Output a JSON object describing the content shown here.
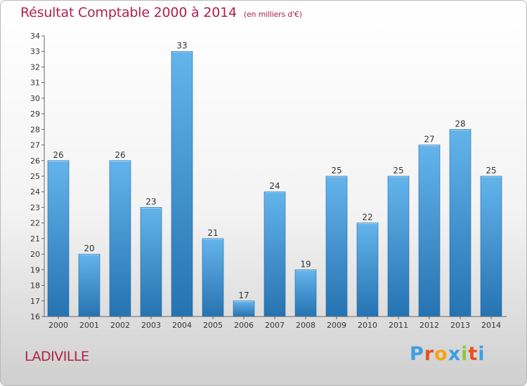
{
  "header": {
    "title": "Résultat Comptable 2000 à 2014",
    "unit": "(en milliers d'€)"
  },
  "footer": {
    "place": "LADIVILLE",
    "brand": "Proxiti"
  },
  "colors": {
    "title": "#b0204a",
    "bar_light": "#64b4ec",
    "bar_dark": "#2573b1",
    "logo": [
      "#3c9ee0",
      "#e8501f",
      "#f2a516",
      "#3c9ee0",
      "#8cc63e",
      "#e8501f",
      "#3c9ee0"
    ]
  },
  "chart_data": {
    "type": "bar",
    "title": "Résultat Comptable 2000 à 2014",
    "subtitle": "(en milliers d'€)",
    "xlabel": "",
    "ylabel": "",
    "ylim": [
      16,
      34
    ],
    "grid": false,
    "categories": [
      "2000",
      "2001",
      "2002",
      "2003",
      "2004",
      "2005",
      "2006",
      "2007",
      "2008",
      "2009",
      "2010",
      "2011",
      "2012",
      "2013",
      "2014"
    ],
    "values": [
      26,
      20,
      26,
      23,
      33,
      21,
      17,
      24,
      19,
      25,
      22,
      25,
      27,
      28,
      25
    ],
    "yticks": [
      16,
      17,
      18,
      19,
      20,
      21,
      22,
      23,
      24,
      25,
      26,
      27,
      28,
      29,
      30,
      31,
      32,
      33,
      34
    ]
  }
}
